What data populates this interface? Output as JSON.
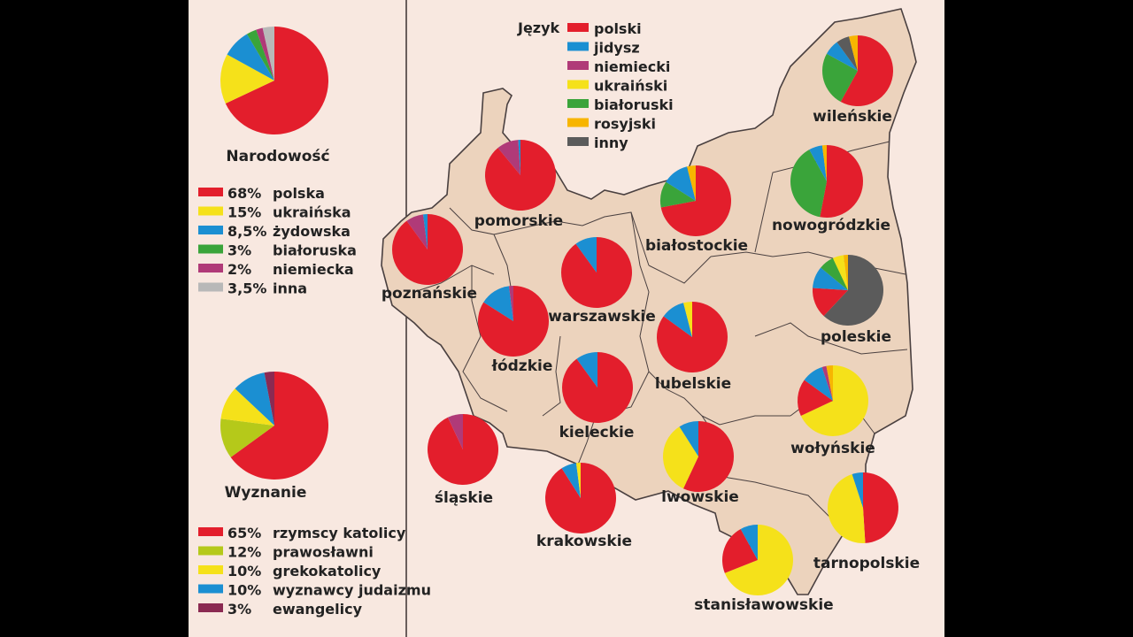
{
  "colors": {
    "red": "#e31e2c",
    "blue": "#1b8fd2",
    "magenta": "#b03a78",
    "yellow": "#f5e11a",
    "green": "#3aa43a",
    "orange": "#f7b500",
    "darkgray": "#5b5b5b",
    "lightgray": "#b8b8b8",
    "olive": "#b5c91a",
    "purple": "#8b2a52",
    "land": "#ecd3bd",
    "border": "#4a4040"
  },
  "national": {
    "title": "Narodowość",
    "items": [
      {
        "pct": "68%",
        "label": "polska",
        "color": "#e31e2c",
        "value": 68
      },
      {
        "pct": "15%",
        "label": "ukraińska",
        "color": "#f5e11a",
        "value": 15
      },
      {
        "pct": "8,5%",
        "label": "żydowska",
        "color": "#1b8fd2",
        "value": 8.5
      },
      {
        "pct": "3%",
        "label": "białoruska",
        "color": "#3aa43a",
        "value": 3
      },
      {
        "pct": "2%",
        "label": "niemiecka",
        "color": "#b03a78",
        "value": 2
      },
      {
        "pct": "3,5%",
        "label": "inna",
        "color": "#b8b8b8",
        "value": 3.5
      }
    ]
  },
  "religion": {
    "title": "Wyznanie",
    "items": [
      {
        "pct": "65%",
        "label": "rzymscy katolicy",
        "color": "#e31e2c",
        "value": 65
      },
      {
        "pct": "12%",
        "label": "prawosławni",
        "color": "#b5c91a",
        "value": 12
      },
      {
        "pct": "10%",
        "label": "grekokatolicy",
        "color": "#f5e11a",
        "value": 10
      },
      {
        "pct": "10%",
        "label": "wyznawcy judaizmu",
        "color": "#1b8fd2",
        "value": 10
      },
      {
        "pct": "3%",
        "label": "ewangelicy",
        "color": "#8b2a52",
        "value": 3
      }
    ]
  },
  "language_legend": {
    "title": "Język",
    "items": [
      {
        "label": "polski",
        "color": "#e31e2c"
      },
      {
        "label": "jidysz",
        "color": "#1b8fd2"
      },
      {
        "label": "niemiecki",
        "color": "#b03a78"
      },
      {
        "label": "ukraiński",
        "color": "#f5e11a"
      },
      {
        "label": "białoruski",
        "color": "#3aa43a"
      },
      {
        "label": "rosyjski",
        "color": "#f7b500"
      },
      {
        "label": "inny",
        "color": "#5b5b5b"
      }
    ]
  },
  "voivodeships": [
    {
      "name": "wileńskie",
      "slices": [
        {
          "c": "#e31e2c",
          "v": 58
        },
        {
          "c": "#3aa43a",
          "v": 25
        },
        {
          "c": "#1b8fd2",
          "v": 7
        },
        {
          "c": "#5b5b5b",
          "v": 6
        },
        {
          "c": "#f7b500",
          "v": 4
        }
      ]
    },
    {
      "name": "nowogródzkie",
      "slices": [
        {
          "c": "#e31e2c",
          "v": 53
        },
        {
          "c": "#3aa43a",
          "v": 39
        },
        {
          "c": "#1b8fd2",
          "v": 6
        },
        {
          "c": "#f7b500",
          "v": 2
        }
      ]
    },
    {
      "name": "białostockie",
      "slices": [
        {
          "c": "#e31e2c",
          "v": 72
        },
        {
          "c": "#3aa43a",
          "v": 12
        },
        {
          "c": "#1b8fd2",
          "v": 12
        },
        {
          "c": "#f7b500",
          "v": 4
        }
      ]
    },
    {
      "name": "pomorskie",
      "slices": [
        {
          "c": "#e31e2c",
          "v": 89
        },
        {
          "c": "#b03a78",
          "v": 10
        },
        {
          "c": "#1b8fd2",
          "v": 1
        }
      ]
    },
    {
      "name": "poznańskie",
      "slices": [
        {
          "c": "#e31e2c",
          "v": 90
        },
        {
          "c": "#b03a78",
          "v": 8
        },
        {
          "c": "#1b8fd2",
          "v": 2
        }
      ]
    },
    {
      "name": "warszawskie",
      "slices": [
        {
          "c": "#e31e2c",
          "v": 90
        },
        {
          "c": "#1b8fd2",
          "v": 10
        }
      ]
    },
    {
      "name": "łódzkie",
      "slices": [
        {
          "c": "#e31e2c",
          "v": 84
        },
        {
          "c": "#1b8fd2",
          "v": 14
        },
        {
          "c": "#b03a78",
          "v": 2
        }
      ]
    },
    {
      "name": "poleskie",
      "slices": [
        {
          "c": "#5b5b5b",
          "v": 62
        },
        {
          "c": "#e31e2c",
          "v": 14
        },
        {
          "c": "#1b8fd2",
          "v": 10
        },
        {
          "c": "#3aa43a",
          "v": 7
        },
        {
          "c": "#f5e11a",
          "v": 5
        },
        {
          "c": "#f7b500",
          "v": 2
        }
      ]
    },
    {
      "name": "lubelskie",
      "slices": [
        {
          "c": "#e31e2c",
          "v": 85
        },
        {
          "c": "#1b8fd2",
          "v": 11
        },
        {
          "c": "#f5e11a",
          "v": 4
        }
      ]
    },
    {
      "name": "kieleckie",
      "slices": [
        {
          "c": "#e31e2c",
          "v": 90
        },
        {
          "c": "#1b8fd2",
          "v": 10
        }
      ]
    },
    {
      "name": "śląskie",
      "slices": [
        {
          "c": "#e31e2c",
          "v": 93
        },
        {
          "c": "#b03a78",
          "v": 7
        }
      ]
    },
    {
      "name": "krakowskie",
      "slices": [
        {
          "c": "#e31e2c",
          "v": 91
        },
        {
          "c": "#1b8fd2",
          "v": 7
        },
        {
          "c": "#f5e11a",
          "v": 2
        }
      ]
    },
    {
      "name": "lwowskie",
      "slices": [
        {
          "c": "#e31e2c",
          "v": 57
        },
        {
          "c": "#f5e11a",
          "v": 34
        },
        {
          "c": "#1b8fd2",
          "v": 9
        }
      ]
    },
    {
      "name": "wołyńskie",
      "slices": [
        {
          "c": "#f5e11a",
          "v": 68
        },
        {
          "c": "#e31e2c",
          "v": 17
        },
        {
          "c": "#1b8fd2",
          "v": 10
        },
        {
          "c": "#b03a78",
          "v": 2
        },
        {
          "c": "#f7b500",
          "v": 3
        }
      ]
    },
    {
      "name": "tarnopolskie",
      "slices": [
        {
          "c": "#e31e2c",
          "v": 49
        },
        {
          "c": "#f5e11a",
          "v": 46
        },
        {
          "c": "#1b8fd2",
          "v": 5
        }
      ]
    },
    {
      "name": "stanisławowskie",
      "slices": [
        {
          "c": "#f5e11a",
          "v": 69
        },
        {
          "c": "#e31e2c",
          "v": 23
        },
        {
          "c": "#1b8fd2",
          "v": 8
        }
      ]
    }
  ]
}
